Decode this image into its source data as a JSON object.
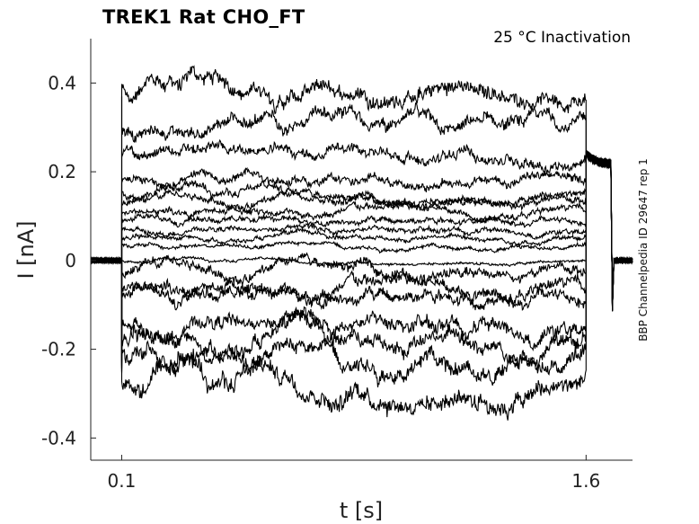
{
  "chart_data": {
    "type": "line",
    "title": "TREK1  Rat  CHO_FT",
    "subtitle": "25 °C  Inactivation",
    "side_label": "BBP Channelpedia ID 29647 rep 1",
    "xlabel": "t [s]",
    "ylabel": "I [nA]",
    "xlim": [
      0.0,
      1.75
    ],
    "ylim": [
      -0.45,
      0.5
    ],
    "xticks": [
      0.1,
      1.6
    ],
    "xtick_labels": [
      "0.1",
      "1.6"
    ],
    "yticks": [
      0.4,
      0.2,
      0,
      -0.2,
      -0.4
    ],
    "ytick_labels": [
      "0.4",
      "0.2",
      "0",
      "-0.2",
      "-0.4"
    ],
    "grid": false,
    "legend": "none",
    "line_color": "#000000",
    "pulse": {
      "start": 0.1,
      "end": 1.6
    },
    "series_steady_levels_nA": [
      0.385,
      0.3,
      0.238,
      0.18,
      0.155,
      0.13,
      0.11,
      0.09,
      0.07,
      0.05,
      0.035,
      0.0,
      -0.03,
      -0.065,
      -0.08,
      -0.14,
      -0.185,
      -0.21,
      -0.27
    ],
    "baseline_nA": 0.0,
    "tail_current_nA": 0.24
  }
}
